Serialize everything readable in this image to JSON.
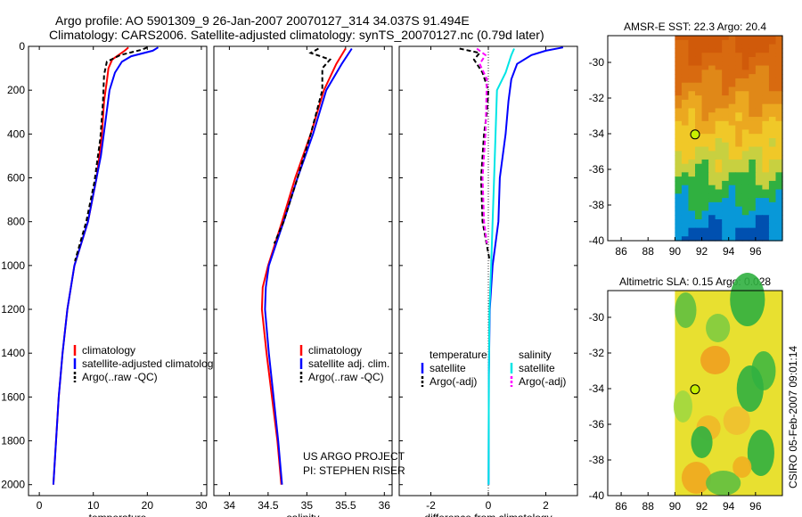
{
  "header": {
    "line1": "Argo profile: AO 5901309_9 26-Jan-2007 20070127_314 34.037S 91.494E",
    "line2": "Climatology: CARS2006. Satellite-adjusted climatology: synTS_20070127.nc (0.79d later)"
  },
  "credits": {
    "project": "US ARGO PROJECT",
    "pi": "PI: STEPHEN RISER",
    "stamp": "CSIRO 05-Feb-2007 09:01:14"
  },
  "colors": {
    "climatology": "#ff0000",
    "satellite": "#0000ff",
    "argo": "#000000",
    "sat_salinity": "#00e5e5",
    "argo_salinity_adj": "#ff00ff",
    "marker": "#c8f000"
  },
  "chart_data": [
    {
      "id": "temperature",
      "type": "line",
      "xlabel": "temperature",
      "ylabel": "",
      "xlim": [
        -2,
        31
      ],
      "ylim": [
        2050,
        0
      ],
      "xticks": [
        0,
        10,
        20,
        30
      ],
      "yticks": [
        0,
        200,
        400,
        600,
        800,
        1000,
        1200,
        1400,
        1600,
        1800,
        2000
      ],
      "legend": {
        "placement": "lower-right",
        "entries": [
          "climatology",
          "satellite-adjusted climatology",
          "Argo(..raw -QC)"
        ]
      },
      "series": [
        {
          "name": "climatology",
          "color": "#ff0000",
          "dash": "",
          "points": [
            [
              16.5,
              5
            ],
            [
              15.8,
              20
            ],
            [
              13.5,
              60
            ],
            [
              12.8,
              100
            ],
            [
              12.5,
              160
            ],
            [
              12.0,
              250
            ],
            [
              11.6,
              400
            ],
            [
              10.6,
              600
            ],
            [
              9.0,
              800
            ],
            [
              6.5,
              1000
            ],
            [
              5.2,
              1200
            ],
            [
              4.3,
              1400
            ],
            [
              3.6,
              1600
            ],
            [
              3.1,
              1800
            ],
            [
              2.6,
              2000
            ]
          ]
        },
        {
          "name": "satellite-adjusted climatology",
          "color": "#0000ff",
          "dash": "",
          "points": [
            [
              22.0,
              5
            ],
            [
              21.0,
              20
            ],
            [
              17.0,
              45
            ],
            [
              15.3,
              70
            ],
            [
              14.0,
              120
            ],
            [
              13.0,
              200
            ],
            [
              12.2,
              350
            ],
            [
              11.4,
              500
            ],
            [
              10.2,
              650
            ],
            [
              9.0,
              800
            ],
            [
              6.5,
              1000
            ],
            [
              5.2,
              1200
            ],
            [
              4.3,
              1400
            ],
            [
              3.6,
              1600
            ],
            [
              3.1,
              1800
            ],
            [
              2.6,
              2000
            ]
          ]
        },
        {
          "name": "Argo(..raw -QC)",
          "color": "#000000",
          "dash": "5,3",
          "points": [
            [
              20.0,
              5
            ],
            [
              19.0,
              15
            ],
            [
              15.0,
              40
            ],
            [
              12.5,
              70
            ],
            [
              12.0,
              130
            ],
            [
              11.8,
              250
            ],
            [
              11.3,
              420
            ],
            [
              10.2,
              620
            ],
            [
              8.7,
              800
            ],
            [
              6.6,
              980
            ]
          ]
        }
      ]
    },
    {
      "id": "salinity",
      "type": "line",
      "xlabel": "salinity",
      "ylabel": "",
      "xlim": [
        33.8,
        36.1
      ],
      "ylim": [
        2050,
        0
      ],
      "xticks": [
        34,
        34.5,
        35,
        35.5,
        36
      ],
      "yticks": [
        0,
        200,
        400,
        600,
        800,
        1000,
        1200,
        1400,
        1600,
        1800,
        2000
      ],
      "legend": {
        "placement": "lower-right",
        "entries": [
          "climatology",
          "satellite adj. clim.",
          "Argo(..raw -QC)"
        ]
      },
      "series": [
        {
          "name": "climatology",
          "color": "#ff0000",
          "dash": "",
          "points": [
            [
              35.5,
              10
            ],
            [
              35.38,
              80
            ],
            [
              35.22,
              200
            ],
            [
              35.05,
              400
            ],
            [
              34.85,
              600
            ],
            [
              34.68,
              800
            ],
            [
              34.5,
              1000
            ],
            [
              34.43,
              1100
            ],
            [
              34.42,
              1200
            ],
            [
              34.48,
              1400
            ],
            [
              34.55,
              1600
            ],
            [
              34.62,
              1800
            ],
            [
              34.67,
              2000
            ]
          ]
        },
        {
          "name": "satellite adj. clim.",
          "color": "#0000ff",
          "dash": "",
          "points": [
            [
              35.58,
              10
            ],
            [
              35.45,
              80
            ],
            [
              35.25,
              200
            ],
            [
              35.08,
              400
            ],
            [
              34.88,
              600
            ],
            [
              34.7,
              800
            ],
            [
              34.51,
              1000
            ],
            [
              34.47,
              1100
            ],
            [
              34.46,
              1200
            ],
            [
              34.51,
              1400
            ],
            [
              34.57,
              1600
            ],
            [
              34.63,
              1800
            ],
            [
              34.68,
              2000
            ]
          ]
        },
        {
          "name": "Argo(..raw -QC)",
          "color": "#000000",
          "dash": "5,3",
          "points": [
            [
              35.15,
              10
            ],
            [
              35.05,
              30
            ],
            [
              35.3,
              60
            ],
            [
              35.2,
              100
            ],
            [
              35.2,
              200
            ],
            [
              35.05,
              400
            ],
            [
              34.88,
              600
            ],
            [
              34.7,
              800
            ],
            [
              34.58,
              900
            ]
          ]
        }
      ]
    },
    {
      "id": "difference",
      "type": "line",
      "xlabel": "difference from climatology",
      "ylabel": "",
      "xlim": [
        -3.1,
        3.1
      ],
      "ylim": [
        2050,
        0
      ],
      "xticks": [
        -2,
        0,
        2
      ],
      "yticks": [
        0,
        200,
        400,
        600,
        800,
        1000,
        1200,
        1400,
        1600,
        1800,
        2000
      ],
      "legend": {
        "placement": "lower-center",
        "col1_title": "temperature",
        "col2_title": "salinity",
        "col1": [
          "satellite",
          "Argo(-adj)"
        ],
        "col2": [
          "satellite",
          "Argo(-adj)"
        ]
      },
      "series": [
        {
          "name": "satellite",
          "group": "temperature",
          "color": "#0000ff",
          "dash": "",
          "points": [
            [
              2.6,
              5
            ],
            [
              2.0,
              20
            ],
            [
              1.5,
              40
            ],
            [
              1.0,
              80
            ],
            [
              0.8,
              150
            ],
            [
              0.7,
              250
            ],
            [
              0.6,
              400
            ],
            [
              0.4,
              600
            ],
            [
              0.35,
              800
            ],
            [
              0.15,
              1000
            ],
            [
              0.05,
              1200
            ],
            [
              0.02,
              1500
            ],
            [
              0.01,
              2000
            ]
          ]
        },
        {
          "name": "Argo(-adj)",
          "group": "temperature",
          "color": "#000000",
          "dash": "5,3",
          "points": [
            [
              -1.0,
              10
            ],
            [
              -0.3,
              30
            ],
            [
              -0.5,
              60
            ],
            [
              -0.2,
              120
            ],
            [
              0,
              200
            ],
            [
              -0.05,
              300
            ],
            [
              -0.15,
              400
            ],
            [
              -0.25,
              600
            ],
            [
              -0.2,
              800
            ],
            [
              0.05,
              980
            ]
          ]
        },
        {
          "name": "satellite",
          "group": "salinity",
          "color": "#00e5e5",
          "dash": "",
          "points": [
            [
              0.9,
              10
            ],
            [
              0.8,
              40
            ],
            [
              0.6,
              120
            ],
            [
              0.3,
              200
            ],
            [
              0.25,
              400
            ],
            [
              0.2,
              600
            ],
            [
              0.15,
              800
            ],
            [
              0.1,
              1000
            ],
            [
              0.04,
              1200
            ],
            [
              0.02,
              1500
            ],
            [
              0.01,
              2000
            ]
          ]
        },
        {
          "name": "Argo(-adj)",
          "group": "salinity",
          "color": "#ff00ff",
          "dash": "5,3",
          "points": [
            [
              -0.4,
              10
            ],
            [
              -0.1,
              40
            ],
            [
              -0.3,
              80
            ],
            [
              -0.05,
              150
            ],
            [
              -0.1,
              400
            ],
            [
              -0.2,
              600
            ],
            [
              -0.15,
              800
            ],
            [
              -0.05,
              900
            ]
          ]
        }
      ]
    },
    {
      "id": "sst-map",
      "type": "heatmap",
      "title": "AMSR-E SST: 22.3 Argo: 20.4",
      "xlim": [
        85,
        98
      ],
      "ylim": [
        -40,
        -28.5
      ],
      "xticks": [
        86,
        88,
        90,
        92,
        94,
        96
      ],
      "yticks": [
        -30,
        -32,
        -34,
        -36,
        -38,
        -40
      ],
      "colors_by_lat": [
        "#d05a0a",
        "#d86a10",
        "#e08818",
        "#eba820",
        "#f0c828",
        "#c8d040",
        "#30b040",
        "#0898d8",
        "#0050b0"
      ],
      "float_position": [
        91.5,
        -34.04
      ]
    },
    {
      "id": "sla-map",
      "type": "heatmap",
      "title": "Altimetric SLA: 0.15 Argo: 0.028",
      "xlim": [
        85,
        98
      ],
      "ylim": [
        -40,
        -28.5
      ],
      "xticks": [
        86,
        88,
        90,
        92,
        94,
        96
      ],
      "yticks": [
        -30,
        -32,
        -34,
        -36,
        -38,
        -40
      ],
      "background_color": "#e8e030",
      "float_position": [
        91.5,
        -34.04
      ]
    }
  ]
}
